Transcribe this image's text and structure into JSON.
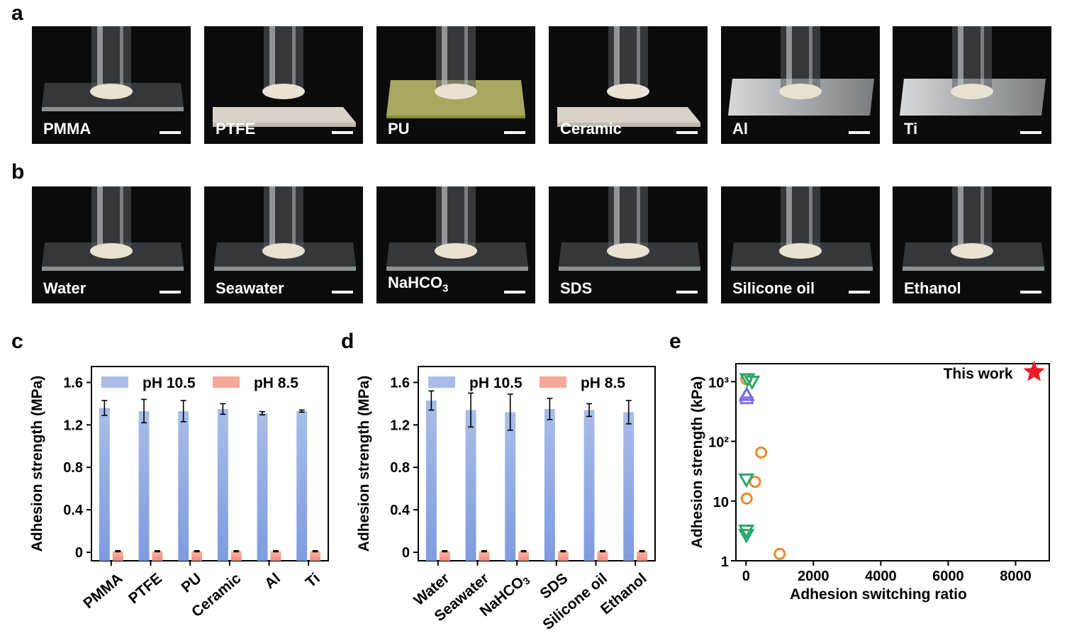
{
  "panels": {
    "a": {
      "letter": "a",
      "photos": [
        {
          "label": "PMMA",
          "substrate": "clear"
        },
        {
          "label": "PTFE",
          "substrate": "white"
        },
        {
          "label": "PU",
          "substrate": "yellow"
        },
        {
          "label": "Ceramic",
          "substrate": "white"
        },
        {
          "label": "Al",
          "substrate": "metal"
        },
        {
          "label": "Ti",
          "substrate": "metal"
        }
      ]
    },
    "b": {
      "letter": "b",
      "photos": [
        {
          "label": "Water",
          "substrate": "clear"
        },
        {
          "label": "Seawater",
          "substrate": "clear"
        },
        {
          "label": "NaHCO",
          "label_sub": "3",
          "substrate": "clear"
        },
        {
          "label": "SDS",
          "substrate": "clear"
        },
        {
          "label": "Silicone oil",
          "substrate": "clear"
        },
        {
          "label": "Ethanol",
          "substrate": "clear"
        }
      ]
    }
  },
  "chart_data": [
    {
      "panel": "c",
      "type": "bar",
      "ylabel": "Adhesion strength (MPa)",
      "ylim": [
        -0.08,
        1.75
      ],
      "yticks": [
        0,
        0.4,
        0.8,
        1.2,
        1.6
      ],
      "ytick_labels": [
        "0",
        "0.4",
        "0.8",
        "1.2",
        "1.6"
      ],
      "categories": [
        "PMMA",
        "PTFE",
        "PU",
        "Ceramic",
        "Al",
        "Ti"
      ],
      "legend_position": "top",
      "series": [
        {
          "name": "pH 10.5",
          "color": "#a3b6e6",
          "values": [
            1.36,
            1.33,
            1.33,
            1.35,
            1.31,
            1.33
          ],
          "errors": [
            0.07,
            0.11,
            0.1,
            0.05,
            0.015,
            0.01
          ]
        },
        {
          "name": "pH 8.5",
          "color": "#f4a092",
          "values": [
            0.01,
            0.01,
            0.01,
            0.01,
            0.01,
            0.01
          ],
          "errors": [
            0.005,
            0.005,
            0.005,
            0.005,
            0.005,
            0.005
          ]
        }
      ]
    },
    {
      "panel": "d",
      "type": "bar",
      "ylabel": "Adhesion strength (MPa)",
      "ylim": [
        -0.08,
        1.75
      ],
      "yticks": [
        0,
        0.4,
        0.8,
        1.2,
        1.6
      ],
      "ytick_labels": [
        "0",
        "0.4",
        "0.8",
        "1.2",
        "1.6"
      ],
      "categories": [
        "Water",
        "Seawater",
        "NaHCO3",
        "SDS",
        "Silicone oil",
        "Ethanol"
      ],
      "legend_position": "top",
      "series": [
        {
          "name": "pH 10.5",
          "color": "#a3b6e6",
          "values": [
            1.43,
            1.34,
            1.32,
            1.35,
            1.34,
            1.32
          ],
          "errors": [
            0.09,
            0.16,
            0.17,
            0.1,
            0.06,
            0.11
          ]
        },
        {
          "name": "pH 8.5",
          "color": "#f4a092",
          "values": [
            0.01,
            0.01,
            0.01,
            0.01,
            0.01,
            0.01
          ],
          "errors": [
            0.005,
            0.005,
            0.005,
            0.005,
            0.005,
            0.005
          ]
        }
      ]
    },
    {
      "panel": "e",
      "type": "scatter",
      "xlabel": "Adhesion switching ratio",
      "ylabel": "Adhesion strength (kPa)",
      "xlim": [
        -300,
        9000
      ],
      "xticks": [
        0,
        2000,
        4000,
        6000,
        8000
      ],
      "xtick_labels": [
        "0",
        "2000",
        "4000",
        "6000",
        "8000"
      ],
      "yscale": "log",
      "ylim": [
        1,
        2000
      ],
      "yticks": [
        1,
        10,
        100,
        1000
      ],
      "ytick_labels": [
        "1",
        "10",
        "10²",
        "10³"
      ],
      "series": [
        {
          "marker": "circle",
          "color": "#e8892a",
          "points": [
            [
              10,
              1100
            ],
            [
              450,
              65
            ],
            [
              270,
              21
            ],
            [
              20,
              11
            ],
            [
              1000,
              1.3
            ]
          ]
        },
        {
          "marker": "triangle-down",
          "color": "#2aa76a",
          "points": [
            [
              40,
              1100
            ],
            [
              180,
              1000
            ],
            [
              10,
              23
            ],
            [
              10,
              3.2
            ],
            [
              10,
              2.7
            ]
          ]
        },
        {
          "marker": "triangle-up",
          "color": "#6a6ae6",
          "points": [
            [
              20,
              600
            ]
          ]
        },
        {
          "marker": "square",
          "color": "#8a6ae6",
          "points": [
            [
              20,
              500
            ]
          ]
        },
        {
          "marker": "star",
          "color": "#ee1c25",
          "points": [
            [
              8550,
              1450
            ]
          ]
        }
      ],
      "annotation": "This work"
    }
  ],
  "letters": {
    "c": "c",
    "d": "d",
    "e": "e"
  }
}
